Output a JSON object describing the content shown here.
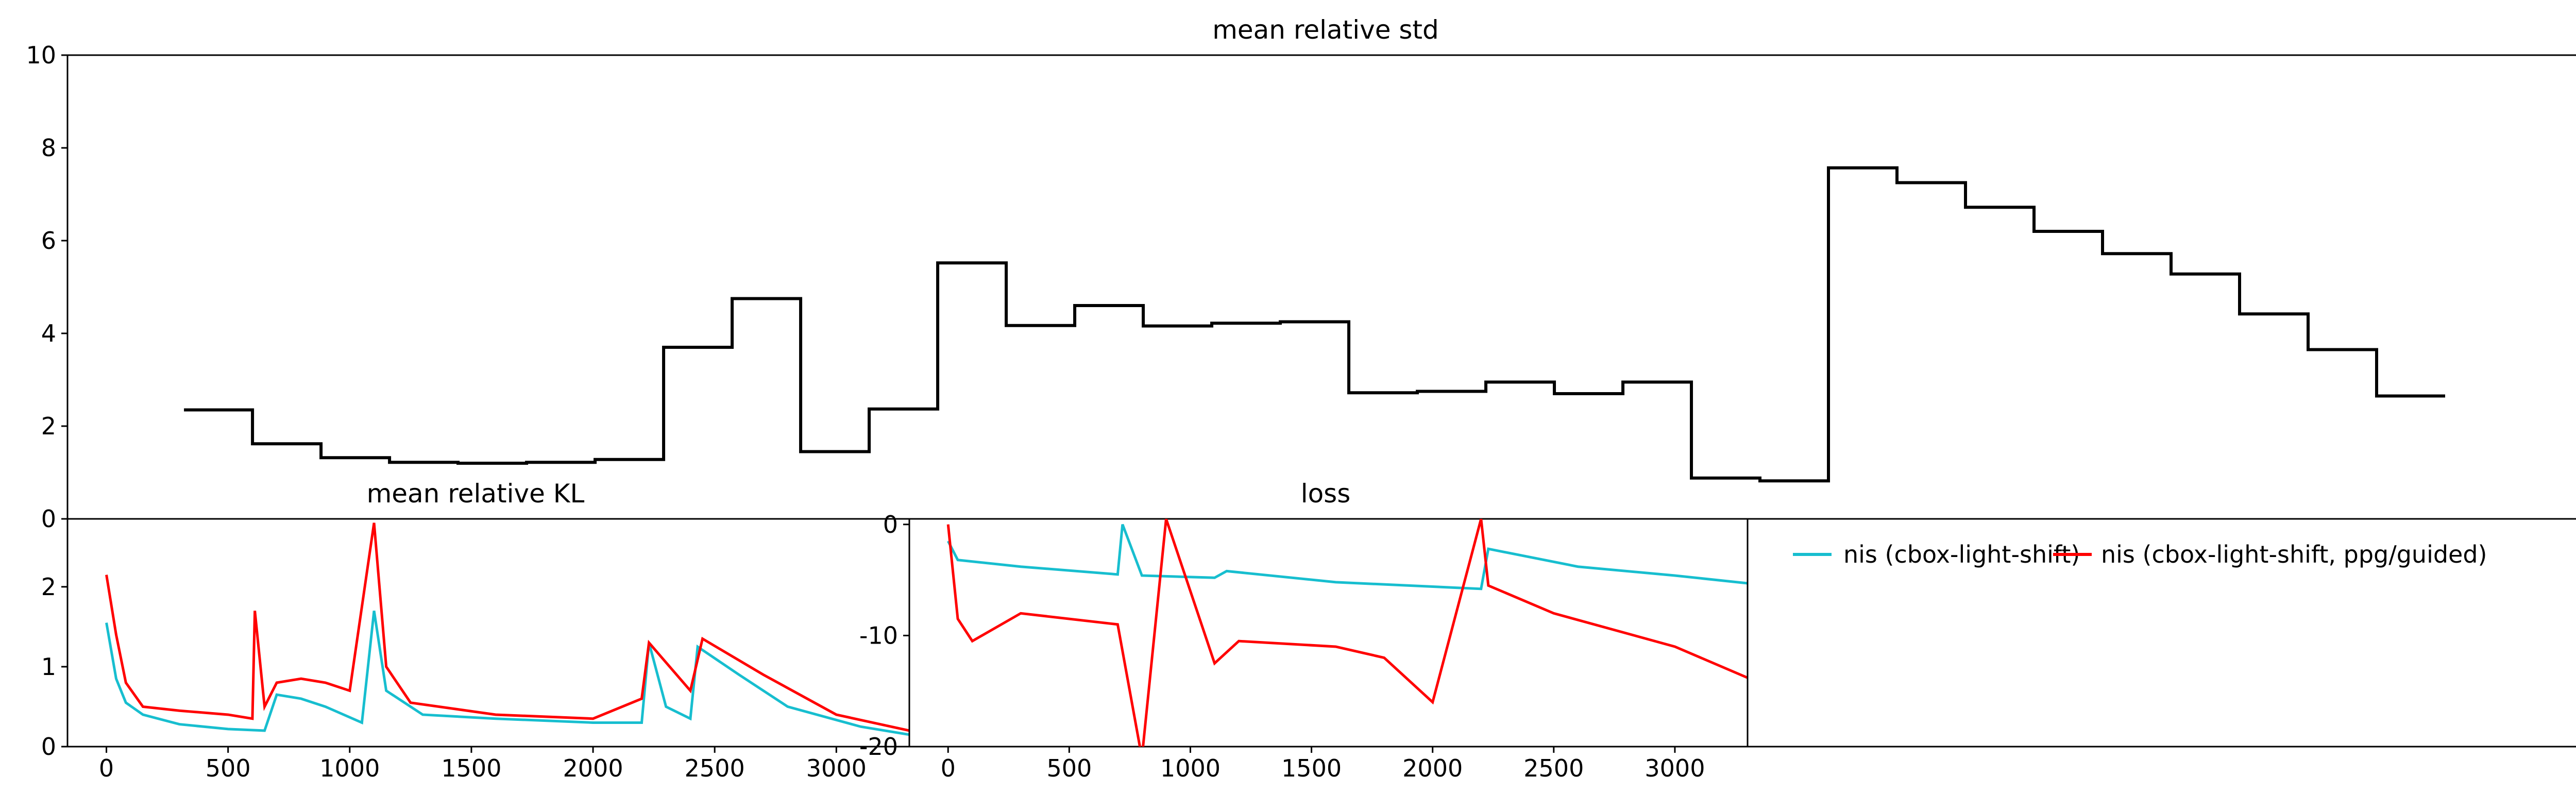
{
  "chart_data": [
    {
      "type": "line",
      "title": "mean relative std",
      "xlabel": "",
      "ylabel": "",
      "ylim": [
        0,
        10
      ],
      "yticks": [
        0,
        2,
        4,
        6,
        8,
        10
      ],
      "grid": false,
      "series": [
        {
          "color": "#000000",
          "step": true,
          "points": [
            [
              0.5,
              2.35
            ],
            [
              1.5,
              1.62
            ],
            [
              2.5,
              1.32
            ],
            [
              3.5,
              1.22
            ],
            [
              4.5,
              1.2
            ],
            [
              5.5,
              1.22
            ],
            [
              6.5,
              1.28
            ],
            [
              7.5,
              3.7
            ],
            [
              8.5,
              4.75
            ],
            [
              9.5,
              1.45
            ],
            [
              10.5,
              2.37
            ],
            [
              11.5,
              5.52
            ],
            [
              12.5,
              4.17
            ],
            [
              13.5,
              4.6
            ],
            [
              14.5,
              4.16
            ],
            [
              15.5,
              4.22
            ],
            [
              16.5,
              4.25
            ],
            [
              17.5,
              2.72
            ],
            [
              18.5,
              2.75
            ],
            [
              19.5,
              2.95
            ],
            [
              20.5,
              2.7
            ],
            [
              21.5,
              2.95
            ],
            [
              22.5,
              0.88
            ],
            [
              23.5,
              0.82
            ],
            [
              24.5,
              7.57
            ],
            [
              25.5,
              7.25
            ],
            [
              26.5,
              6.72
            ],
            [
              27.5,
              6.2
            ],
            [
              28.5,
              5.72
            ],
            [
              29.5,
              5.28
            ],
            [
              30.5,
              4.42
            ],
            [
              31.5,
              3.65
            ],
            [
              32.5,
              2.65
            ],
            [
              33.5,
              2.65
            ]
          ]
        }
      ]
    },
    {
      "type": "line",
      "title": "mean relative KL",
      "xlabel": "",
      "ylabel": "",
      "xlim": [
        -160,
        3300
      ],
      "ylim": [
        0,
        2.85
      ],
      "xticks": [
        0,
        500,
        1000,
        1500,
        2000,
        2500,
        3000
      ],
      "yticks": [
        0,
        1,
        2
      ],
      "series": [
        {
          "color": "#17becf",
          "points": [
            [
              0,
              1.55
            ],
            [
              40,
              0.85
            ],
            [
              80,
              0.55
            ],
            [
              150,
              0.4
            ],
            [
              300,
              0.28
            ],
            [
              500,
              0.22
            ],
            [
              650,
              0.2
            ],
            [
              700,
              0.65
            ],
            [
              800,
              0.6
            ],
            [
              900,
              0.5
            ],
            [
              1050,
              0.3
            ],
            [
              1100,
              1.7
            ],
            [
              1150,
              0.7
            ],
            [
              1300,
              0.4
            ],
            [
              1600,
              0.35
            ],
            [
              2000,
              0.3
            ],
            [
              2200,
              0.3
            ],
            [
              2230,
              1.3
            ],
            [
              2300,
              0.5
            ],
            [
              2400,
              0.35
            ],
            [
              2430,
              1.25
            ],
            [
              2600,
              0.9
            ],
            [
              2800,
              0.5
            ],
            [
              3100,
              0.25
            ],
            [
              3300,
              0.15
            ]
          ]
        },
        {
          "color": "#ff0000",
          "points": [
            [
              0,
              2.15
            ],
            [
              40,
              1.4
            ],
            [
              80,
              0.8
            ],
            [
              150,
              0.5
            ],
            [
              300,
              0.45
            ],
            [
              500,
              0.4
            ],
            [
              600,
              0.35
            ],
            [
              610,
              1.7
            ],
            [
              650,
              0.5
            ],
            [
              700,
              0.8
            ],
            [
              800,
              0.85
            ],
            [
              900,
              0.8
            ],
            [
              1000,
              0.7
            ],
            [
              1100,
              2.8
            ],
            [
              1150,
              1.0
            ],
            [
              1250,
              0.55
            ],
            [
              1600,
              0.4
            ],
            [
              2000,
              0.35
            ],
            [
              2200,
              0.6
            ],
            [
              2230,
              1.3
            ],
            [
              2400,
              0.7
            ],
            [
              2450,
              1.35
            ],
            [
              2700,
              0.9
            ],
            [
              3000,
              0.4
            ],
            [
              3300,
              0.2
            ]
          ]
        }
      ]
    },
    {
      "type": "line",
      "title": "loss",
      "xlabel": "",
      "ylabel": "",
      "xlim": [
        -160,
        3300
      ],
      "ylim": [
        -20,
        0.5
      ],
      "xticks": [
        0,
        500,
        1000,
        1500,
        2000,
        2500,
        3000
      ],
      "yticks": [
        0,
        -10,
        -20
      ],
      "series": [
        {
          "color": "#17becf",
          "points": [
            [
              0,
              -1.5
            ],
            [
              40,
              -3.2
            ],
            [
              300,
              -3.8
            ],
            [
              700,
              -4.5
            ],
            [
              720,
              0
            ],
            [
              800,
              -4.6
            ],
            [
              1100,
              -4.8
            ],
            [
              1150,
              -4.2
            ],
            [
              1600,
              -5.2
            ],
            [
              2200,
              -5.8
            ],
            [
              2230,
              -2.2
            ],
            [
              2600,
              -3.8
            ],
            [
              3000,
              -4.6
            ],
            [
              3300,
              -5.3
            ]
          ]
        },
        {
          "color": "#ff0000",
          "points": [
            [
              0,
              0
            ],
            [
              40,
              -8.5
            ],
            [
              100,
              -10.5
            ],
            [
              300,
              -8.0
            ],
            [
              700,
              -9.0
            ],
            [
              800,
              -21
            ],
            [
              900,
              0.5
            ],
            [
              1100,
              -12.5
            ],
            [
              1200,
              -10.5
            ],
            [
              1600,
              -11.0
            ],
            [
              1800,
              -12.0
            ],
            [
              2000,
              -16.0
            ],
            [
              2200,
              0.5
            ],
            [
              2230,
              -5.5
            ],
            [
              2500,
              -8.0
            ],
            [
              3000,
              -11.0
            ],
            [
              3300,
              -13.8
            ]
          ]
        }
      ]
    }
  ],
  "legend": {
    "placement": "upper-left",
    "entries": [
      {
        "label": "nis (cbox-light-shift)",
        "color": "#17becf"
      },
      {
        "label": "nis (cbox-light-shift, ppg/guided)",
        "color": "#ff0000"
      }
    ]
  }
}
